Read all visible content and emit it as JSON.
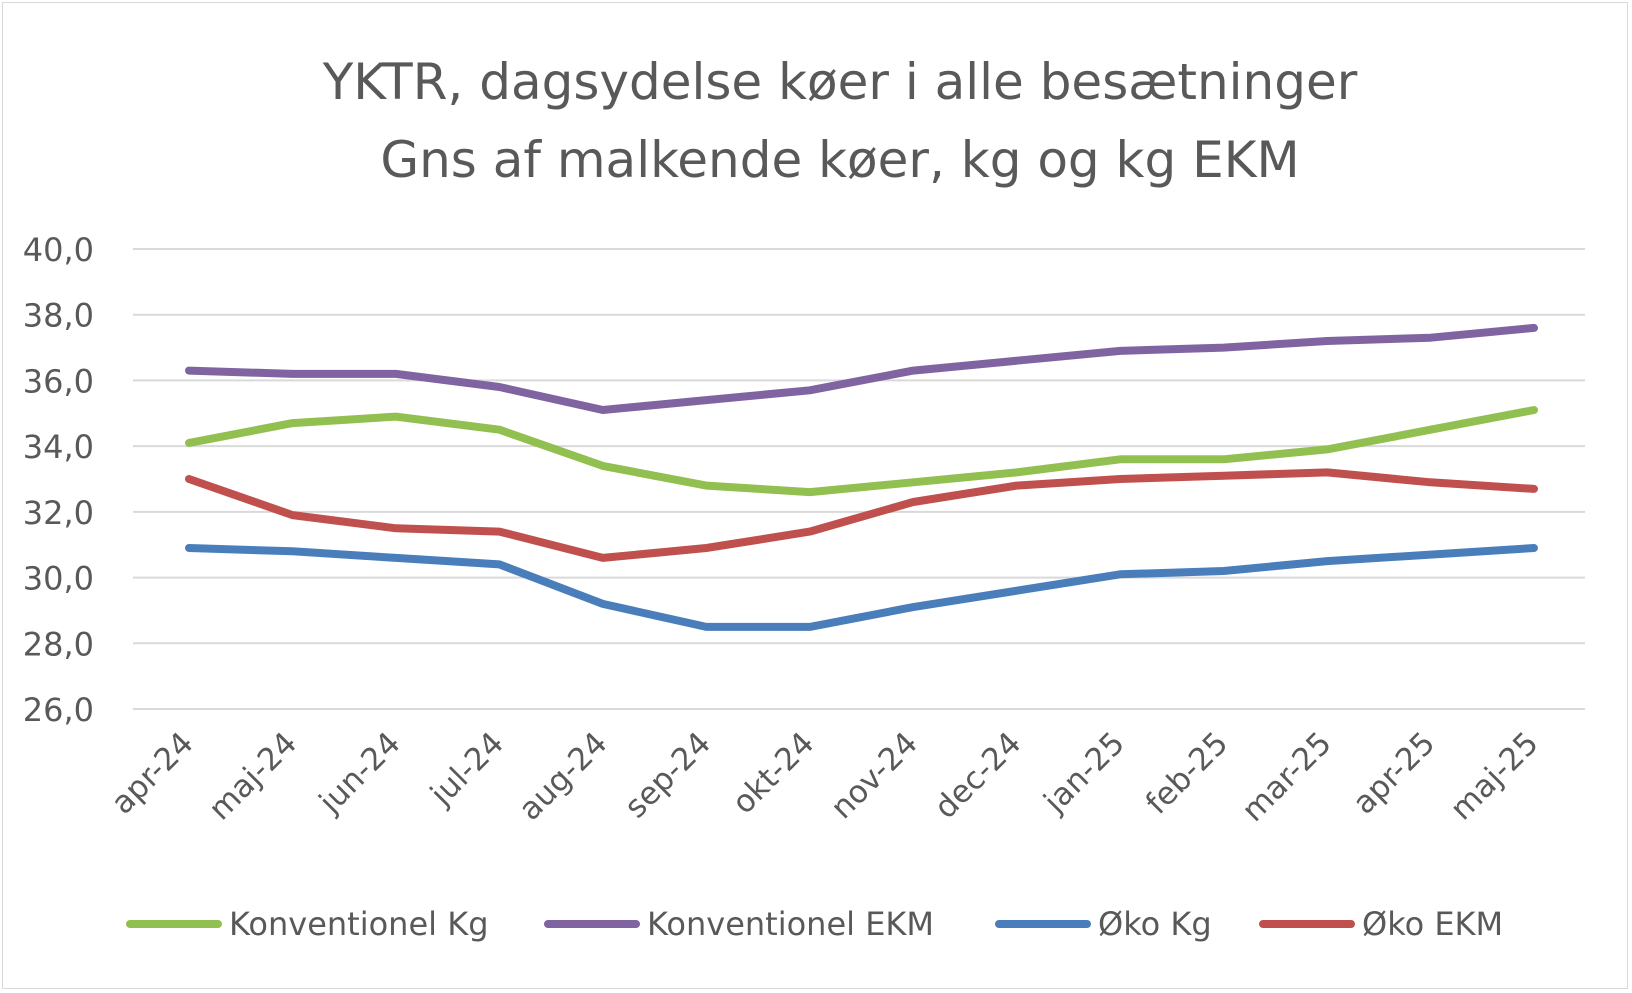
{
  "chart_data": {
    "type": "line",
    "title": "YKTR, dagsydelse køer i alle besætninger",
    "subtitle": "Gns af malkende køer, kg og kg EKM",
    "xlabel": "",
    "ylabel": "",
    "categories": [
      "apr-24",
      "maj-24",
      "jun-24",
      "jul-24",
      "aug-24",
      "sep-24",
      "okt-24",
      "nov-24",
      "dec-24",
      "jan-25",
      "feb-25",
      "mar-25",
      "apr-25",
      "maj-25"
    ],
    "ylim": [
      26,
      40
    ],
    "yticks": [
      "26,0",
      "28,0",
      "30,0",
      "32,0",
      "34,0",
      "36,0",
      "38,0",
      "40,0"
    ],
    "grid": true,
    "legend_position": "bottom",
    "series": [
      {
        "name": "Konventionel Kg",
        "color": "#92c050",
        "values": [
          34.1,
          34.7,
          34.9,
          34.5,
          33.4,
          32.8,
          32.6,
          32.9,
          33.2,
          33.6,
          33.6,
          33.9,
          34.5,
          35.1
        ]
      },
      {
        "name": "Konventionel EKM",
        "color": "#8064a2",
        "values": [
          36.3,
          36.2,
          36.2,
          35.8,
          35.1,
          35.4,
          35.7,
          36.3,
          36.6,
          36.9,
          37.0,
          37.2,
          37.3,
          37.6
        ]
      },
      {
        "name": "Øko Kg",
        "color": "#4a7ebb",
        "values": [
          30.9,
          30.8,
          30.6,
          30.4,
          29.2,
          28.5,
          28.5,
          29.1,
          29.6,
          30.1,
          30.2,
          30.5,
          30.7,
          30.9
        ]
      },
      {
        "name": "Øko EKM",
        "color": "#c0504d",
        "values": [
          33.0,
          31.9,
          31.5,
          31.4,
          30.6,
          30.9,
          31.4,
          32.3,
          32.8,
          33.0,
          33.1,
          33.2,
          32.9,
          32.7
        ]
      }
    ]
  }
}
